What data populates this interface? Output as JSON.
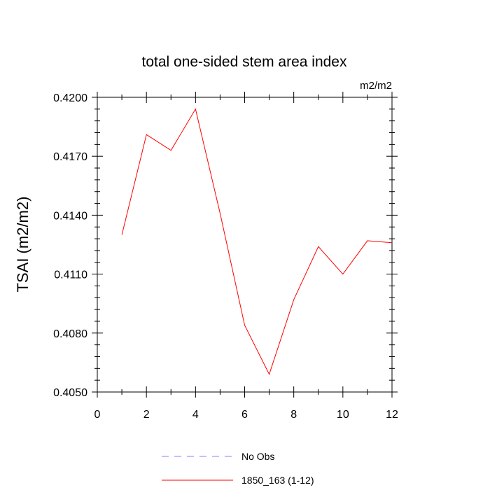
{
  "chart_data": {
    "type": "line",
    "title": "total one-sided stem area index",
    "units_label": "m2/m2",
    "ylabel": "TSAI  (m2/m2)",
    "xlabel": "",
    "xlim": [
      0,
      12
    ],
    "ylim": [
      0.405,
      0.42
    ],
    "xticks": [
      0,
      2,
      4,
      6,
      8,
      10,
      12
    ],
    "xtick_labels": [
      "0",
      "2",
      "4",
      "6",
      "8",
      "10",
      "12"
    ],
    "yticks": [
      0.405,
      0.408,
      0.411,
      0.414,
      0.417,
      0.42
    ],
    "ytick_labels": [
      "0.4050",
      "0.4080",
      "0.4110",
      "0.4140",
      "0.4170",
      "0.4200"
    ],
    "grid": false,
    "legend_position": "bottom",
    "series": [
      {
        "name": "No Obs",
        "color": "#8080ff",
        "style": "dashed",
        "x": [],
        "y": []
      },
      {
        "name": "1850_163 (1-12)",
        "color": "#ff0000",
        "style": "solid",
        "x": [
          1,
          2,
          3,
          4,
          5,
          6,
          7,
          8,
          9,
          10,
          11,
          12
        ],
        "y": [
          0.413,
          0.4181,
          0.4173,
          0.4194,
          0.4141,
          0.4084,
          0.4059,
          0.4097,
          0.4124,
          0.411,
          0.4127,
          0.4126
        ]
      }
    ]
  }
}
